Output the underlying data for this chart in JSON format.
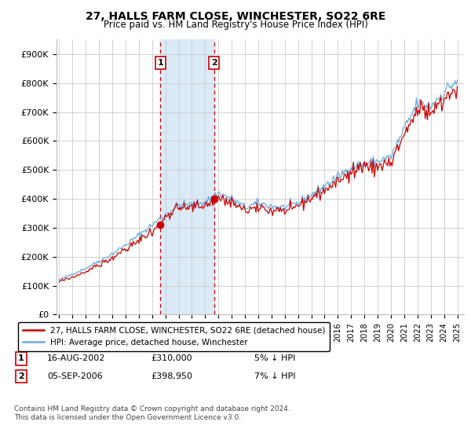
{
  "title": "27, HALLS FARM CLOSE, WINCHESTER, SO22 6RE",
  "subtitle": "Price paid vs. HM Land Registry's House Price Index (HPI)",
  "legend_line1": "27, HALLS FARM CLOSE, WINCHESTER, SO22 6RE (detached house)",
  "legend_line2": "HPI: Average price, detached house, Winchester",
  "annotation1_label": "1",
  "annotation1_date": "16-AUG-2002",
  "annotation1_price": "£310,000",
  "annotation1_hpi": "5% ↓ HPI",
  "annotation2_label": "2",
  "annotation2_date": "05-SEP-2006",
  "annotation2_price": "£398,950",
  "annotation2_hpi": "7% ↓ HPI",
  "footer": "Contains HM Land Registry data © Crown copyright and database right 2024.\nThis data is licensed under the Open Government Licence v3.0.",
  "hpi_color": "#6aabdb",
  "price_color": "#cc0000",
  "shading_color": "#daeaf7",
  "ylim": [
    0,
    950000
  ],
  "yticks": [
    0,
    100000,
    200000,
    300000,
    400000,
    500000,
    600000,
    700000,
    800000,
    900000
  ],
  "ytick_labels": [
    "£0",
    "£100K",
    "£200K",
    "£300K",
    "£400K",
    "£500K",
    "£600K",
    "£700K",
    "£800K",
    "£900K"
  ],
  "sale1_year": 2002.625,
  "sale1_price": 310000,
  "sale2_year": 2006.674,
  "sale2_price": 398950,
  "xmin": 1994.8,
  "xmax": 2025.5,
  "hpi_anchors_years": [
    1995,
    1996,
    1997,
    1998,
    1999,
    2000,
    2001,
    2002,
    2003,
    2004,
    2005,
    2006,
    2007,
    2008,
    2009,
    2010,
    2011,
    2012,
    2013,
    2014,
    2015,
    2016,
    2017,
    2018,
    2019,
    2020,
    2021,
    2022,
    2023,
    2024,
    2025
  ],
  "hpi_anchors_vals": [
    120000,
    140000,
    160000,
    185000,
    210000,
    240000,
    275000,
    310000,
    345000,
    380000,
    380000,
    390000,
    420000,
    400000,
    370000,
    385000,
    375000,
    370000,
    385000,
    415000,
    445000,
    475000,
    510000,
    520000,
    530000,
    545000,
    640000,
    730000,
    720000,
    770000,
    810000
  ]
}
